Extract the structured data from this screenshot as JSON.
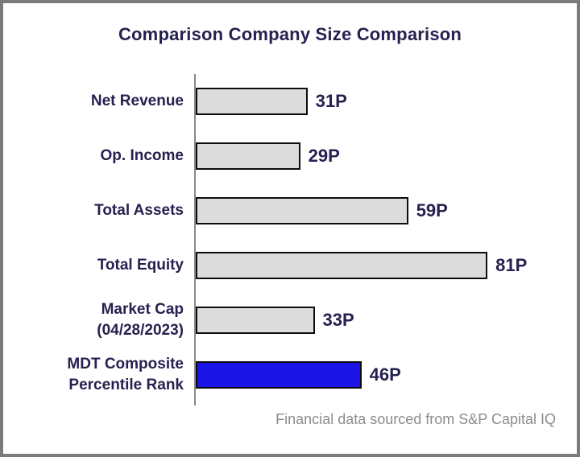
{
  "chart_data": {
    "type": "bar",
    "orientation": "horizontal",
    "title": "Comparison Company Size Comparison",
    "categories": [
      "Net Revenue",
      "Op. Income",
      "Total Assets",
      "Total Equity",
      "Market Cap\n(04/28/2023)",
      "MDT Composite\nPercentile Rank"
    ],
    "values": [
      31,
      29,
      59,
      81,
      33,
      46
    ],
    "value_labels": [
      "31P",
      "29P",
      "59P",
      "81P",
      "33P",
      "46P"
    ],
    "unit": "P",
    "xlim": [
      0,
      100
    ],
    "bar_colors": [
      "#dcdcdc",
      "#dcdcdc",
      "#dcdcdc",
      "#dcdcdc",
      "#dcdcdc",
      "#1c13e6"
    ],
    "highlight_index": 5,
    "grid": false,
    "legend": false
  },
  "colors": {
    "text_navy": "#252150",
    "bar_gray": "#dcdcdc",
    "bar_blue": "#1c13e6",
    "bar_border": "#0d0d0d",
    "axis_gray": "#8a8a8a",
    "frame_border": "#7b7b7b",
    "footer_gray": "#8c8c8c"
  },
  "footer": {
    "text": "Financial data sourced from S&P Capital IQ"
  }
}
